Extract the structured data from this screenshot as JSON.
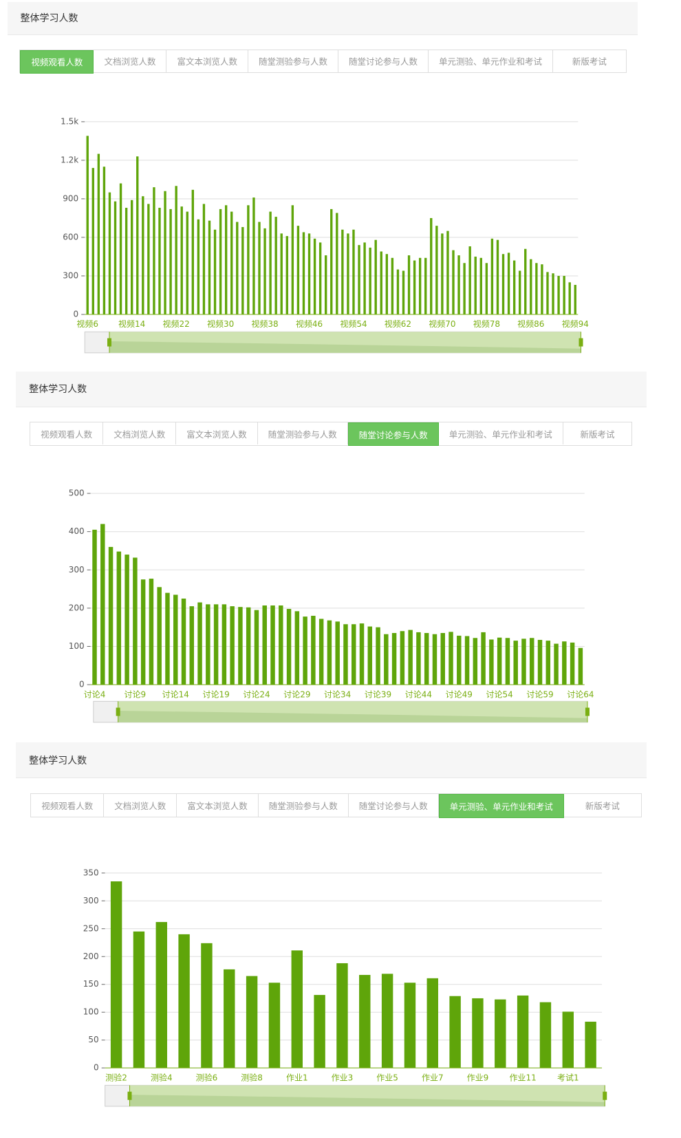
{
  "panels": [
    {
      "title": "整体学习人数",
      "tabs": [
        "视频观看人数",
        "文档浏览人数",
        "富文本浏览人数",
        "随堂测验参与人数",
        "随堂讨论参与人数",
        "单元测验、单元作业和考试",
        "新版考试"
      ],
      "active": 0
    },
    {
      "title": "整体学习人数",
      "tabs": [
        "视频观看人数",
        "文档浏览人数",
        "富文本浏览人数",
        "随堂测验参与人数",
        "随堂讨论参与人数",
        "单元测验、单元作业和考试",
        "新版考试"
      ],
      "active": 4
    },
    {
      "title": "整体学习人数",
      "tabs": [
        "视频观看人数",
        "文档浏览人数",
        "富文本浏览人数",
        "随堂测验参与人数",
        "随堂讨论参与人数",
        "单元测验、单元作业和考试",
        "新版考试"
      ],
      "active": 5
    }
  ],
  "chart_data": [
    {
      "type": "bar",
      "color": "#5fa50a",
      "grid": true,
      "ylim": [
        0,
        1500
      ],
      "yticks": [
        0,
        300,
        600,
        900,
        {
          "value": 1200,
          "label": "1.2k"
        },
        {
          "value": 1500,
          "label": "1.5k"
        }
      ],
      "categories": [
        "视频6",
        null,
        null,
        null,
        null,
        null,
        null,
        null,
        "视频14",
        null,
        null,
        null,
        null,
        null,
        null,
        null,
        "视频22",
        null,
        null,
        null,
        null,
        null,
        null,
        null,
        "视频30",
        null,
        null,
        null,
        null,
        null,
        null,
        null,
        "视频38",
        null,
        null,
        null,
        null,
        null,
        null,
        null,
        "视频46",
        null,
        null,
        null,
        null,
        null,
        null,
        null,
        "视频54",
        null,
        null,
        null,
        null,
        null,
        null,
        null,
        "视频62",
        null,
        null,
        null,
        null,
        null,
        null,
        null,
        "视频70",
        null,
        null,
        null,
        null,
        null,
        null,
        null,
        "视频78",
        null,
        null,
        null,
        null,
        null,
        null,
        null,
        "视频86",
        null,
        null,
        null,
        null,
        null,
        null,
        null,
        "视频94"
      ],
      "values": [
        1390,
        1140,
        1250,
        1150,
        950,
        880,
        1020,
        830,
        890,
        1230,
        920,
        860,
        990,
        830,
        960,
        820,
        1000,
        840,
        800,
        970,
        740,
        860,
        730,
        660,
        820,
        850,
        800,
        720,
        680,
        850,
        910,
        720,
        670,
        800,
        760,
        630,
        610,
        850,
        690,
        640,
        630,
        590,
        560,
        460,
        820,
        790,
        660,
        630,
        660,
        540,
        560,
        520,
        580,
        490,
        470,
        440,
        350,
        340,
        460,
        420,
        440,
        440,
        750,
        690,
        630,
        650,
        500,
        460,
        400,
        530,
        450,
        440,
        400,
        590,
        580,
        470,
        480,
        420,
        340,
        510,
        430,
        400,
        390,
        330,
        320,
        300,
        300,
        250,
        230
      ]
    },
    {
      "type": "bar",
      "color": "#5fa50a",
      "grid": true,
      "ylim": [
        0,
        500
      ],
      "yticks": [
        0,
        100,
        200,
        300,
        400,
        500
      ],
      "categories": [
        "讨论4",
        null,
        null,
        null,
        null,
        "讨论9",
        null,
        null,
        null,
        null,
        "讨论14",
        null,
        null,
        null,
        null,
        "讨论19",
        null,
        null,
        null,
        null,
        "讨论24",
        null,
        null,
        null,
        null,
        "讨论29",
        null,
        null,
        null,
        null,
        "讨论34",
        null,
        null,
        null,
        null,
        "讨论39",
        null,
        null,
        null,
        null,
        "讨论44",
        null,
        null,
        null,
        null,
        "讨论49",
        null,
        null,
        null,
        null,
        "讨论54",
        null,
        null,
        null,
        null,
        "讨论59",
        null,
        null,
        null,
        null,
        "讨论64"
      ],
      "values": [
        405,
        420,
        360,
        348,
        340,
        332,
        275,
        277,
        255,
        240,
        235,
        225,
        205,
        215,
        210,
        210,
        210,
        205,
        203,
        202,
        195,
        207,
        207,
        207,
        198,
        192,
        178,
        180,
        172,
        168,
        165,
        158,
        158,
        160,
        152,
        150,
        132,
        135,
        140,
        143,
        137,
        135,
        132,
        135,
        138,
        128,
        127,
        122,
        137,
        118,
        123,
        122,
        115,
        120,
        122,
        117,
        115,
        107,
        113,
        110,
        96
      ]
    },
    {
      "type": "bar",
      "color": "#5fa50a",
      "grid": true,
      "ylim": [
        0,
        350
      ],
      "yticks": [
        0,
        50,
        100,
        150,
        200,
        250,
        300,
        350
      ],
      "categories": [
        "测验2",
        null,
        "测验4",
        null,
        "测验6",
        null,
        "测验8",
        null,
        "作业1",
        null,
        "作业3",
        null,
        "作业5",
        null,
        "作业7",
        null,
        "作业9",
        null,
        "作业11",
        null,
        "考试1",
        null
      ],
      "values": [
        335,
        245,
        262,
        240,
        224,
        177,
        165,
        153,
        211,
        131,
        188,
        167,
        169,
        153,
        161,
        129,
        125,
        123,
        130,
        118,
        101,
        83
      ]
    }
  ]
}
